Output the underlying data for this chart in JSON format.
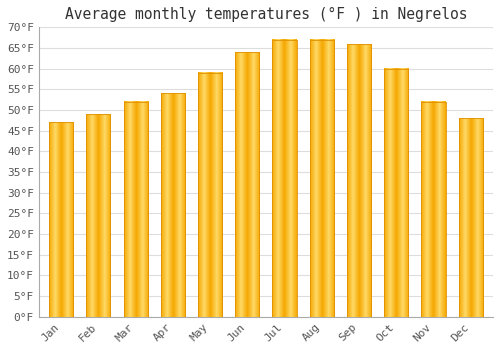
{
  "title": "Average monthly temperatures (°F ) in Negrelos",
  "months": [
    "Jan",
    "Feb",
    "Mar",
    "Apr",
    "May",
    "Jun",
    "Jul",
    "Aug",
    "Sep",
    "Oct",
    "Nov",
    "Dec"
  ],
  "values": [
    47,
    49,
    52,
    54,
    59,
    64,
    67,
    67,
    66,
    60,
    52,
    48
  ],
  "bar_color_left": "#F5A800",
  "bar_color_center": "#FFD966",
  "bar_color_right": "#F5A800",
  "ylim": [
    0,
    70
  ],
  "yticks": [
    0,
    5,
    10,
    15,
    20,
    25,
    30,
    35,
    40,
    45,
    50,
    55,
    60,
    65,
    70
  ],
  "ytick_labels": [
    "0°F",
    "5°F",
    "10°F",
    "15°F",
    "20°F",
    "25°F",
    "30°F",
    "35°F",
    "40°F",
    "45°F",
    "50°F",
    "55°F",
    "60°F",
    "65°F",
    "70°F"
  ],
  "background_color": "#ffffff",
  "plot_bg_color": "#ffffff",
  "grid_color": "#dddddd",
  "title_fontsize": 10.5,
  "tick_fontsize": 8,
  "bar_edge_color": "#E09000",
  "tick_color": "#555555",
  "spine_color": "#aaaaaa"
}
